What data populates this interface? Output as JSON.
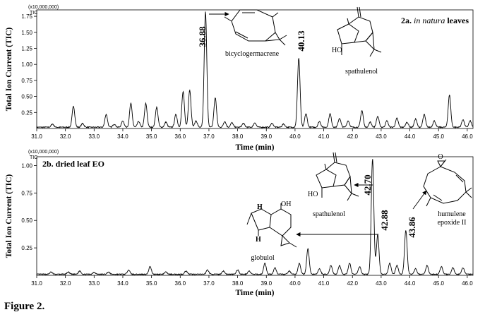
{
  "figure_caption": "Figure 2.",
  "chart_data": [
    {
      "type": "line",
      "title": "2a. in natura leaves",
      "title_prefix": "2a.",
      "title_italic": "in natura",
      "title_suffix": "leaves",
      "scale_label": "(x10,000,000)",
      "signal_label": "TIC",
      "xlabel": "Time (min)",
      "ylabel": "Total Ion Current (TIC)",
      "xlim": [
        31.0,
        46.2
      ],
      "ylim": [
        0,
        1.85
      ],
      "x_ticks": [
        31.0,
        32.0,
        33.0,
        34.0,
        35.0,
        36.0,
        37.0,
        38.0,
        39.0,
        40.0,
        41.0,
        42.0,
        43.0,
        44.0,
        45.0,
        46.0
      ],
      "x_tick_labels": [
        "31.0",
        "32.0",
        "33.0",
        "34.0",
        "35.0",
        "36.0",
        "37.0",
        "38.0",
        "39.0",
        "40.0",
        "41.0",
        "42.0",
        "43.0",
        "44.0",
        "45.0",
        "46.0"
      ],
      "y_ticks": [
        0.25,
        0.5,
        0.75,
        1.0,
        1.25,
        1.5,
        1.75
      ],
      "y_tick_labels": [
        "0.25",
        "0.50",
        "0.75",
        "1.00",
        "1.25",
        "1.50",
        "1.75"
      ],
      "baseline": 0.02,
      "peaks": [
        {
          "t": 31.55,
          "h": 0.05
        },
        {
          "t": 32.28,
          "h": 0.33
        },
        {
          "t": 32.6,
          "h": 0.06
        },
        {
          "t": 33.42,
          "h": 0.2
        },
        {
          "t": 33.7,
          "h": 0.05
        },
        {
          "t": 34.0,
          "h": 0.1
        },
        {
          "t": 34.28,
          "h": 0.37
        },
        {
          "t": 34.55,
          "h": 0.09
        },
        {
          "t": 34.8,
          "h": 0.37
        },
        {
          "t": 35.18,
          "h": 0.31
        },
        {
          "t": 35.5,
          "h": 0.08
        },
        {
          "t": 35.85,
          "h": 0.2
        },
        {
          "t": 36.1,
          "h": 0.55
        },
        {
          "t": 36.33,
          "h": 0.58
        },
        {
          "t": 36.55,
          "h": 0.1
        },
        {
          "t": 36.88,
          "h": 1.8
        },
        {
          "t": 37.22,
          "h": 0.46
        },
        {
          "t": 37.55,
          "h": 0.09
        },
        {
          "t": 37.8,
          "h": 0.07
        },
        {
          "t": 38.2,
          "h": 0.06
        },
        {
          "t": 38.6,
          "h": 0.07
        },
        {
          "t": 39.2,
          "h": 0.06
        },
        {
          "t": 39.6,
          "h": 0.05
        },
        {
          "t": 40.13,
          "h": 1.08
        },
        {
          "t": 40.38,
          "h": 0.21
        },
        {
          "t": 40.85,
          "h": 0.09
        },
        {
          "t": 41.22,
          "h": 0.21
        },
        {
          "t": 41.55,
          "h": 0.14
        },
        {
          "t": 41.85,
          "h": 0.1
        },
        {
          "t": 42.33,
          "h": 0.26
        },
        {
          "t": 42.62,
          "h": 0.08
        },
        {
          "t": 42.88,
          "h": 0.17
        },
        {
          "t": 43.2,
          "h": 0.1
        },
        {
          "t": 43.55,
          "h": 0.14
        },
        {
          "t": 43.9,
          "h": 0.08
        },
        {
          "t": 44.2,
          "h": 0.13
        },
        {
          "t": 44.5,
          "h": 0.2
        },
        {
          "t": 44.85,
          "h": 0.1
        },
        {
          "t": 45.38,
          "h": 0.5
        },
        {
          "t": 45.85,
          "h": 0.12
        },
        {
          "t": 46.1,
          "h": 0.1
        }
      ],
      "annotations": [
        {
          "label": "36.88",
          "compound": "bicyclogermacrene"
        },
        {
          "label": "40.13",
          "compound": "spathulenol",
          "hydroxyl": "HO"
        }
      ]
    },
    {
      "type": "line",
      "title": "2b. dried leaf EO",
      "scale_label": "(x10,000,000)",
      "signal_label": "TIC",
      "xlabel": "Time (min)",
      "ylabel": "Total Ion Current (TIC)",
      "xlim": [
        31.0,
        46.2
      ],
      "ylim": [
        0,
        1.08
      ],
      "x_ticks": [
        31.0,
        32.0,
        33.0,
        34.0,
        35.0,
        36.0,
        37.0,
        38.0,
        39.0,
        40.0,
        41.0,
        42.0,
        43.0,
        44.0,
        45.0,
        46.0
      ],
      "x_tick_labels": [
        "31.0",
        "32.0",
        "33.0",
        "34.0",
        "35.0",
        "36.0",
        "37.0",
        "38.0",
        "39.0",
        "40.0",
        "41.0",
        "42.0",
        "43.0",
        "44.0",
        "45.0",
        "46.0"
      ],
      "y_ticks": [
        0.25,
        0.5,
        0.75,
        1.0
      ],
      "y_tick_labels": [
        "0.25",
        "0.50",
        "0.75",
        "1.00"
      ],
      "baseline": 0.01,
      "peaks": [
        {
          "t": 31.5,
          "h": 0.02
        },
        {
          "t": 32.1,
          "h": 0.02
        },
        {
          "t": 32.5,
          "h": 0.03
        },
        {
          "t": 33.0,
          "h": 0.02
        },
        {
          "t": 33.5,
          "h": 0.02
        },
        {
          "t": 34.2,
          "h": 0.04
        },
        {
          "t": 34.95,
          "h": 0.07
        },
        {
          "t": 35.5,
          "h": 0.02
        },
        {
          "t": 36.2,
          "h": 0.03
        },
        {
          "t": 36.95,
          "h": 0.04
        },
        {
          "t": 37.5,
          "h": 0.03
        },
        {
          "t": 38.0,
          "h": 0.04
        },
        {
          "t": 38.4,
          "h": 0.03
        },
        {
          "t": 38.95,
          "h": 0.1
        },
        {
          "t": 39.3,
          "h": 0.06
        },
        {
          "t": 39.8,
          "h": 0.03
        },
        {
          "t": 40.15,
          "h": 0.1
        },
        {
          "t": 40.45,
          "h": 0.23
        },
        {
          "t": 40.85,
          "h": 0.05
        },
        {
          "t": 41.25,
          "h": 0.08
        },
        {
          "t": 41.55,
          "h": 0.08
        },
        {
          "t": 41.9,
          "h": 0.1
        },
        {
          "t": 42.25,
          "h": 0.07
        },
        {
          "t": 42.7,
          "h": 1.05
        },
        {
          "t": 42.88,
          "h": 0.36
        },
        {
          "t": 43.3,
          "h": 0.1
        },
        {
          "t": 43.55,
          "h": 0.08
        },
        {
          "t": 43.86,
          "h": 0.4
        },
        {
          "t": 44.2,
          "h": 0.05
        },
        {
          "t": 44.6,
          "h": 0.08
        },
        {
          "t": 45.1,
          "h": 0.07
        },
        {
          "t": 45.5,
          "h": 0.06
        },
        {
          "t": 45.85,
          "h": 0.06
        }
      ],
      "annotations": [
        {
          "label": "42.70",
          "compound": "spathulenol",
          "hydroxyl": "HO"
        },
        {
          "label": "42.88",
          "compound": "globulol",
          "hydroxyl": "OH"
        },
        {
          "label": "43.86",
          "compound": "humulene epoxide II",
          "compound_line1": "humulene",
          "compound_line2": "epoxide II"
        }
      ]
    }
  ],
  "icons": [
    "bicyclogermacrene-structure-icon",
    "spathulenol-structure-icon",
    "globulol-structure-icon",
    "humulene-epoxide-structure-icon"
  ]
}
